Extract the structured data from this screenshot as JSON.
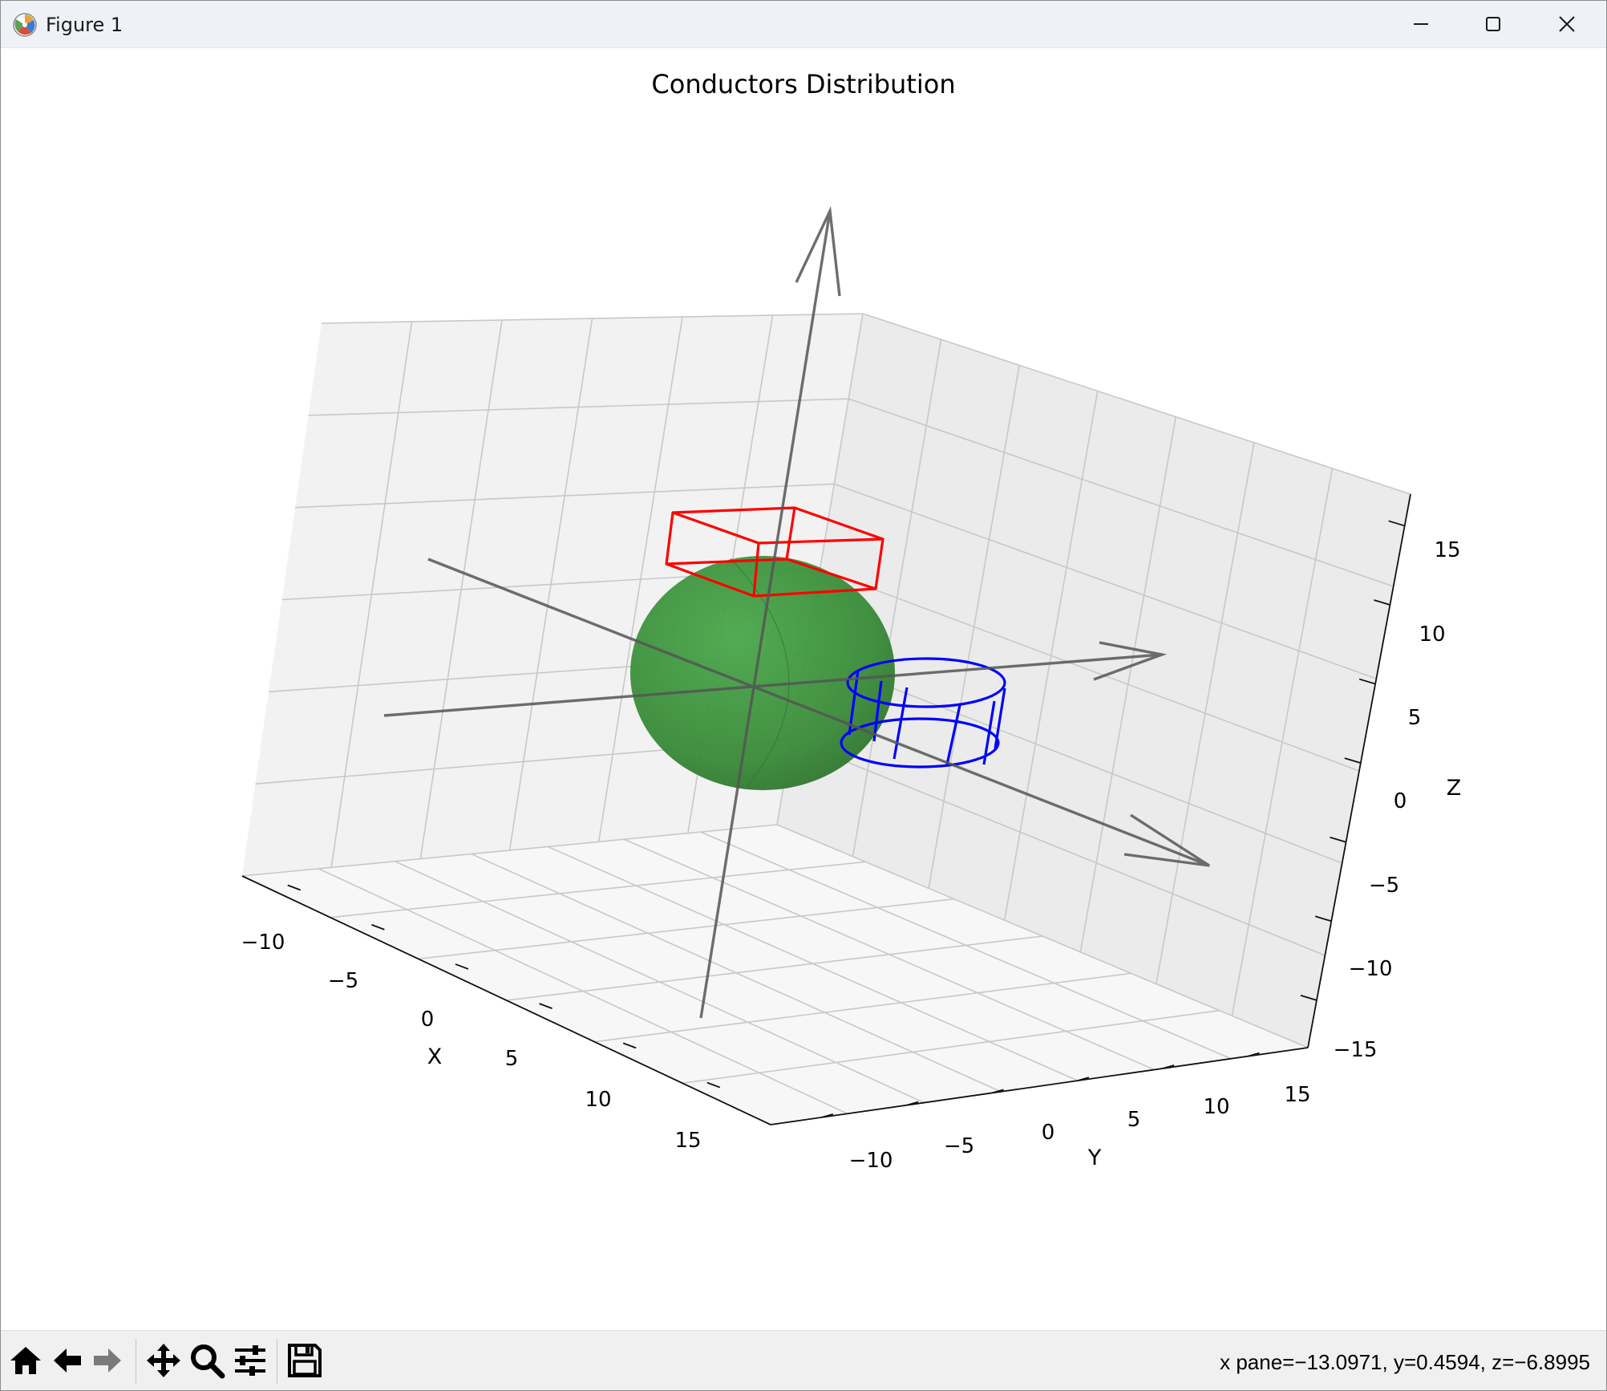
{
  "window": {
    "title": "Figure 1",
    "controls": {
      "minimize": "minimize-icon",
      "maximize": "maximize-icon",
      "close": "close-icon"
    }
  },
  "figure": {
    "title": "Conductors Distribution",
    "xlabel": "X",
    "ylabel": "Y",
    "zlabel": "Z",
    "x_ticks": [
      "−10",
      "−5",
      "0",
      "5",
      "10",
      "15"
    ],
    "y_ticks": [
      "−10",
      "−5",
      "0",
      "5",
      "10",
      "15"
    ],
    "z_ticks": [
      "15",
      "10",
      "5",
      "0",
      "−5",
      "−10",
      "−15"
    ]
  },
  "chart_data": {
    "type": "3d-scene",
    "title": "Conductors Distribution",
    "xlabel": "X",
    "ylabel": "Y",
    "zlabel": "Z",
    "xlim": [
      -12,
      17
    ],
    "ylim": [
      -12,
      17
    ],
    "zlim": [
      -17,
      17
    ],
    "grid": true,
    "objects": [
      {
        "kind": "sphere",
        "color": "#2e8b2e",
        "surface": "filled"
      },
      {
        "kind": "box",
        "color": "#ff0000",
        "style": "wireframe"
      },
      {
        "kind": "cylinder",
        "color": "#0000ff",
        "style": "wireframe"
      },
      {
        "kind": "axis-arrows",
        "color": "#555555",
        "count": 3
      }
    ]
  },
  "toolbar": {
    "tools": [
      {
        "name": "home",
        "icon": "home-icon"
      },
      {
        "name": "back",
        "icon": "back-arrow-icon"
      },
      {
        "name": "forward",
        "icon": "forward-arrow-icon"
      },
      {
        "name": "pan",
        "icon": "pan-icon"
      },
      {
        "name": "zoom",
        "icon": "zoom-icon"
      },
      {
        "name": "configure",
        "icon": "sliders-icon"
      },
      {
        "name": "save",
        "icon": "save-icon"
      }
    ],
    "coordinates": "x pane=−13.0971, y=0.4594, z=−6.8995"
  }
}
